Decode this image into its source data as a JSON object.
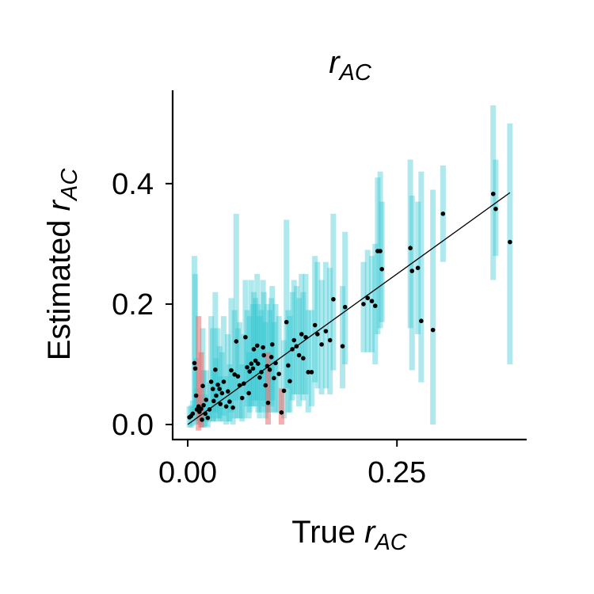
{
  "chart_data": {
    "type": "scatter",
    "title": "r",
    "title_sub": "AC",
    "xlabel_prefix": "True ",
    "xlabel_var": "r",
    "xlabel_sub": "AC",
    "ylabel_prefix": "Estimated ",
    "ylabel_var": "r",
    "ylabel_sub": "AC",
    "xlim": [
      -0.018,
      0.405
    ],
    "ylim": [
      -0.025,
      0.555
    ],
    "xticks": [
      0.0,
      0.25
    ],
    "xtick_labels": [
      "0.00",
      "0.25"
    ],
    "yticks": [
      0.0,
      0.2,
      0.4
    ],
    "ytick_labels": [
      "0.0",
      "0.2",
      "0.4"
    ],
    "grid": false,
    "legend": "none",
    "colors": {
      "errorbar": "#2ec6cf",
      "errorbar_flagged": "#ef6b6b",
      "point": "#000000",
      "identity_line": "#000000"
    },
    "identity_line": [
      [
        0.0,
        0.0
      ],
      [
        0.385,
        0.385
      ]
    ],
    "points": [
      {
        "x": 0.002,
        "y": 0.012,
        "lo": -0.005,
        "hi": 0.03
      },
      {
        "x": 0.004,
        "y": 0.014,
        "lo": -0.005,
        "hi": 0.032
      },
      {
        "x": 0.006,
        "y": 0.018,
        "lo": -0.002,
        "hi": 0.04
      },
      {
        "x": 0.008,
        "y": 0.102,
        "lo": 0.02,
        "hi": 0.28
      },
      {
        "x": 0.009,
        "y": 0.093,
        "lo": 0.02,
        "hi": 0.25
      },
      {
        "x": 0.01,
        "y": 0.048,
        "lo": 0.005,
        "hi": 0.11
      },
      {
        "x": 0.011,
        "y": 0.025,
        "lo": 0.0,
        "hi": 0.06
      },
      {
        "x": 0.013,
        "y": 0.03,
        "lo": -0.01,
        "hi": 0.18,
        "flagged": true
      },
      {
        "x": 0.014,
        "y": 0.021,
        "lo": 0.0,
        "hi": 0.05
      },
      {
        "x": 0.016,
        "y": 0.026,
        "lo": -0.005,
        "hi": 0.12,
        "flagged": true
      },
      {
        "x": 0.017,
        "y": 0.008,
        "lo": -0.005,
        "hi": 0.04
      },
      {
        "x": 0.018,
        "y": 0.064,
        "lo": 0.01,
        "hi": 0.16
      },
      {
        "x": 0.019,
        "y": 0.032,
        "lo": -0.005,
        "hi": 0.09
      },
      {
        "x": 0.021,
        "y": 0.018,
        "lo": -0.003,
        "hi": 0.05
      },
      {
        "x": 0.022,
        "y": 0.041,
        "lo": 0.005,
        "hi": 0.09
      },
      {
        "x": 0.024,
        "y": 0.011,
        "lo": -0.005,
        "hi": 0.04
      },
      {
        "x": 0.026,
        "y": 0.025,
        "lo": 0.005,
        "hi": 0.07
      },
      {
        "x": 0.028,
        "y": 0.071,
        "lo": 0.01,
        "hi": 0.18
      },
      {
        "x": 0.03,
        "y": 0.059,
        "lo": 0.005,
        "hi": 0.16
      },
      {
        "x": 0.031,
        "y": 0.039,
        "lo": 0.005,
        "hi": 0.09
      },
      {
        "x": 0.033,
        "y": 0.091,
        "lo": 0.02,
        "hi": 0.22
      },
      {
        "x": 0.034,
        "y": 0.048,
        "lo": 0.005,
        "hi": 0.11
      },
      {
        "x": 0.036,
        "y": 0.066,
        "lo": 0.01,
        "hi": 0.16
      },
      {
        "x": 0.038,
        "y": 0.059,
        "lo": 0.01,
        "hi": 0.13
      },
      {
        "x": 0.039,
        "y": 0.034,
        "lo": 0.005,
        "hi": 0.08
      },
      {
        "x": 0.041,
        "y": 0.052,
        "lo": 0.005,
        "hi": 0.12
      },
      {
        "x": 0.043,
        "y": 0.071,
        "lo": 0.015,
        "hi": 0.18
      },
      {
        "x": 0.046,
        "y": 0.03,
        "lo": 0.0,
        "hi": 0.08
      },
      {
        "x": 0.048,
        "y": 0.055,
        "lo": 0.005,
        "hi": 0.15
      },
      {
        "x": 0.05,
        "y": 0.038,
        "lo": 0.005,
        "hi": 0.1
      },
      {
        "x": 0.052,
        "y": 0.09,
        "lo": 0.02,
        "hi": 0.21
      },
      {
        "x": 0.054,
        "y": 0.028,
        "lo": 0.0,
        "hi": 0.09
      },
      {
        "x": 0.056,
        "y": 0.083,
        "lo": 0.01,
        "hi": 0.19
      },
      {
        "x": 0.058,
        "y": 0.138,
        "lo": 0.04,
        "hi": 0.35
      },
      {
        "x": 0.06,
        "y": 0.08,
        "lo": 0.01,
        "hi": 0.16
      },
      {
        "x": 0.062,
        "y": 0.065,
        "lo": 0.01,
        "hi": 0.17
      },
      {
        "x": 0.065,
        "y": 0.044,
        "lo": 0.005,
        "hi": 0.1
      },
      {
        "x": 0.067,
        "y": 0.068,
        "lo": 0.01,
        "hi": 0.15
      },
      {
        "x": 0.069,
        "y": 0.145,
        "lo": 0.05,
        "hi": 0.24
      },
      {
        "x": 0.071,
        "y": 0.095,
        "lo": 0.03,
        "hi": 0.19
      },
      {
        "x": 0.073,
        "y": 0.052,
        "lo": 0.01,
        "hi": 0.12
      },
      {
        "x": 0.074,
        "y": 0.088,
        "lo": 0.02,
        "hi": 0.18
      },
      {
        "x": 0.076,
        "y": 0.101,
        "lo": 0.03,
        "hi": 0.24
      },
      {
        "x": 0.078,
        "y": 0.093,
        "lo": 0.03,
        "hi": 0.2
      },
      {
        "x": 0.079,
        "y": 0.125,
        "lo": 0.04,
        "hi": 0.22
      },
      {
        "x": 0.081,
        "y": 0.106,
        "lo": 0.03,
        "hi": 0.21
      },
      {
        "x": 0.083,
        "y": 0.131,
        "lo": 0.04,
        "hi": 0.25
      },
      {
        "x": 0.084,
        "y": 0.101,
        "lo": 0.02,
        "hi": 0.2
      },
      {
        "x": 0.086,
        "y": 0.078,
        "lo": 0.01,
        "hi": 0.18
      },
      {
        "x": 0.088,
        "y": 0.087,
        "lo": 0.02,
        "hi": 0.19
      },
      {
        "x": 0.09,
        "y": 0.128,
        "lo": 0.04,
        "hi": 0.24
      },
      {
        "x": 0.091,
        "y": 0.115,
        "lo": 0.03,
        "hi": 0.22
      },
      {
        "x": 0.093,
        "y": 0.065,
        "lo": 0.01,
        "hi": 0.17
      },
      {
        "x": 0.095,
        "y": 0.097,
        "lo": 0.02,
        "hi": 0.2
      },
      {
        "x": 0.096,
        "y": 0.036,
        "lo": 0.0,
        "hi": 0.12,
        "flagged": true
      },
      {
        "x": 0.098,
        "y": 0.091,
        "lo": 0.02,
        "hi": 0.19
      },
      {
        "x": 0.1,
        "y": 0.112,
        "lo": 0.03,
        "hi": 0.21
      },
      {
        "x": 0.101,
        "y": 0.133,
        "lo": 0.04,
        "hi": 0.23
      },
      {
        "x": 0.103,
        "y": 0.077,
        "lo": 0.02,
        "hi": 0.17
      },
      {
        "x": 0.105,
        "y": 0.102,
        "lo": 0.02,
        "hi": 0.2
      },
      {
        "x": 0.109,
        "y": 0.084,
        "lo": 0.02,
        "hi": 0.18
      },
      {
        "x": 0.112,
        "y": 0.02,
        "lo": 0.0,
        "hi": 0.06,
        "flagged": true
      },
      {
        "x": 0.115,
        "y": 0.056,
        "lo": 0.01,
        "hi": 0.14
      },
      {
        "x": 0.118,
        "y": 0.17,
        "lo": 0.06,
        "hi": 0.34
      },
      {
        "x": 0.12,
        "y": 0.098,
        "lo": 0.02,
        "hi": 0.19
      },
      {
        "x": 0.122,
        "y": 0.072,
        "lo": 0.02,
        "hi": 0.18
      },
      {
        "x": 0.125,
        "y": 0.125,
        "lo": 0.04,
        "hi": 0.22
      },
      {
        "x": 0.127,
        "y": 0.14,
        "lo": 0.05,
        "hi": 0.24
      },
      {
        "x": 0.13,
        "y": 0.13,
        "lo": 0.05,
        "hi": 0.23
      },
      {
        "x": 0.133,
        "y": 0.115,
        "lo": 0.03,
        "hi": 0.21
      },
      {
        "x": 0.136,
        "y": 0.15,
        "lo": 0.05,
        "hi": 0.25
      },
      {
        "x": 0.138,
        "y": 0.11,
        "lo": 0.04,
        "hi": 0.22
      },
      {
        "x": 0.141,
        "y": 0.145,
        "lo": 0.05,
        "hi": 0.25
      },
      {
        "x": 0.144,
        "y": 0.087,
        "lo": 0.02,
        "hi": 0.19
      },
      {
        "x": 0.148,
        "y": 0.087,
        "lo": 0.03,
        "hi": 0.19
      },
      {
        "x": 0.152,
        "y": 0.165,
        "lo": 0.07,
        "hi": 0.28
      },
      {
        "x": 0.155,
        "y": 0.15,
        "lo": 0.06,
        "hi": 0.27
      },
      {
        "x": 0.16,
        "y": 0.133,
        "lo": 0.05,
        "hi": 0.24
      },
      {
        "x": 0.165,
        "y": 0.155,
        "lo": 0.06,
        "hi": 0.27
      },
      {
        "x": 0.17,
        "y": 0.14,
        "lo": 0.05,
        "hi": 0.26
      },
      {
        "x": 0.174,
        "y": 0.208,
        "lo": 0.09,
        "hi": 0.35
      },
      {
        "x": 0.185,
        "y": 0.13,
        "lo": 0.06,
        "hi": 0.23
      },
      {
        "x": 0.188,
        "y": 0.195,
        "lo": 0.1,
        "hi": 0.32
      },
      {
        "x": 0.21,
        "y": 0.2,
        "lo": 0.12,
        "hi": 0.27
      },
      {
        "x": 0.215,
        "y": 0.21,
        "lo": 0.12,
        "hi": 0.29
      },
      {
        "x": 0.22,
        "y": 0.205,
        "lo": 0.12,
        "hi": 0.28
      },
      {
        "x": 0.224,
        "y": 0.197,
        "lo": 0.1,
        "hi": 0.3
      },
      {
        "x": 0.227,
        "y": 0.288,
        "lo": 0.15,
        "hi": 0.41
      },
      {
        "x": 0.23,
        "y": 0.288,
        "lo": 0.16,
        "hi": 0.42
      },
      {
        "x": 0.232,
        "y": 0.258,
        "lo": 0.17,
        "hi": 0.37
      },
      {
        "x": 0.266,
        "y": 0.293,
        "lo": 0.16,
        "hi": 0.44
      },
      {
        "x": 0.268,
        "y": 0.255,
        "lo": 0.09,
        "hi": 0.38
      },
      {
        "x": 0.275,
        "y": 0.26,
        "lo": 0.15,
        "hi": 0.37
      },
      {
        "x": 0.279,
        "y": 0.172,
        "lo": 0.07,
        "hi": 0.42
      },
      {
        "x": 0.293,
        "y": 0.157,
        "lo": 0.0,
        "hi": 0.39
      },
      {
        "x": 0.305,
        "y": 0.35,
        "lo": 0.27,
        "hi": 0.43
      },
      {
        "x": 0.365,
        "y": 0.383,
        "lo": 0.24,
        "hi": 0.53
      },
      {
        "x": 0.368,
        "y": 0.358,
        "lo": 0.28,
        "hi": 0.44
      },
      {
        "x": 0.385,
        "y": 0.303,
        "lo": 0.1,
        "hi": 0.5
      }
    ]
  }
}
